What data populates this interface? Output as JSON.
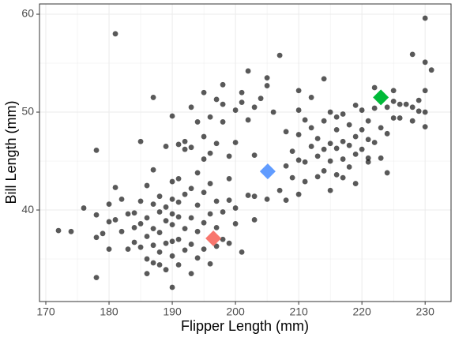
{
  "chart_data": {
    "type": "scatter",
    "xlabel": "Flipper Length (mm)",
    "ylabel": "Bill Length (mm)",
    "xlim": [
      169,
      234.1
    ],
    "ylim": [
      30.65,
      61.05
    ],
    "xticks": [
      170,
      180,
      190,
      200,
      210,
      220,
      230
    ],
    "yticks": [
      40,
      50,
      60
    ],
    "x_minor_ticks": [
      175,
      185,
      195,
      205,
      215,
      225
    ],
    "y_minor_ticks": [
      35,
      45,
      55
    ],
    "grid": true,
    "series": [
      {
        "color": "#000000",
        "opacity": 0.65,
        "marker": "circle",
        "x": [
          178,
          178,
          179,
          180,
          180,
          181,
          181,
          182,
          182,
          183,
          184,
          184,
          184,
          185,
          185,
          185,
          186,
          186,
          186,
          186,
          187,
          187,
          187,
          187,
          187,
          188,
          188,
          188,
          188,
          189,
          189,
          189,
          189,
          190,
          190,
          190,
          190,
          190,
          190,
          190,
          191,
          191,
          191,
          191,
          192,
          192,
          192,
          193,
          193,
          193,
          193,
          194,
          194,
          194,
          195,
          195,
          195,
          196,
          196,
          196,
          197,
          197,
          197,
          198,
          198,
          199,
          199,
          200,
          200,
          201,
          202,
          203,
          205,
          208,
          210,
          195,
          192,
          189,
          185,
          180,
          183,
          186,
          188,
          191,
          194,
          172,
          174,
          176,
          178,
          187,
          190,
          191,
          192,
          193,
          193,
          194,
          195,
          195,
          196,
          196,
          197,
          197,
          198,
          198,
          198,
          199,
          200,
          200,
          201,
          201,
          202,
          202,
          203,
          204,
          205,
          205,
          206,
          207,
          210,
          210,
          212,
          178,
          181,
          203,
          199,
          203,
          207,
          208,
          209,
          209,
          210,
          210,
          211,
          211,
          212,
          212,
          213,
          213,
          213,
          214,
          214,
          214,
          215,
          215,
          215,
          215,
          216,
          216,
          216,
          216,
          217,
          217,
          217,
          218,
          218,
          218,
          219,
          219,
          219,
          220,
          220,
          220,
          221,
          221,
          221,
          222,
          222,
          222,
          223,
          223,
          224,
          224,
          225,
          225,
          226,
          226,
          227,
          228,
          228,
          228,
          229,
          229,
          230,
          230,
          230,
          230,
          230,
          231,
          208,
          211,
          214,
          217,
          221,
          225,
          224,
          219
        ],
        "values": [
          37.2,
          39.5,
          37.6,
          38.8,
          36.0,
          39.0,
          42.3,
          37.8,
          41.1,
          39.6,
          36.7,
          38.2,
          39.7,
          36.2,
          38.6,
          40.9,
          35.0,
          37.3,
          39.2,
          42.5,
          34.6,
          36.4,
          38.1,
          40.6,
          44.1,
          35.7,
          37.7,
          39.8,
          41.4,
          33.9,
          36.6,
          38.9,
          40.3,
          32.1,
          35.3,
          36.8,
          38.5,
          39.6,
          41.1,
          42.9,
          34.4,
          37.0,
          39.3,
          40.8,
          35.9,
          38.1,
          41.6,
          33.5,
          36.5,
          39.2,
          42.2,
          35.1,
          37.8,
          40.5,
          36.0,
          38.7,
          41.8,
          34.5,
          39.6,
          42.7,
          36.3,
          38.2,
          40.9,
          37.0,
          39.8,
          36.6,
          41.0,
          38.6,
          40.2,
          35.7,
          41.5,
          39.0,
          41.1,
          41.0,
          41.6,
          45.2,
          46.2,
          46.5,
          47.0,
          40.6,
          36.0,
          33.5,
          34.4,
          43.2,
          43.8,
          37.9,
          37.8,
          40.2,
          33.1,
          51.5,
          49.6,
          46.7,
          47.0,
          50.5,
          46.4,
          49.0,
          47.5,
          52.0,
          49.5,
          45.8,
          51.3,
          46.8,
          50.8,
          52.8,
          49.0,
          45.5,
          50.2,
          46.9,
          51.0,
          52.0,
          54.2,
          49.2,
          50.5,
          51.4,
          52.7,
          53.5,
          50.0,
          55.8,
          52.2,
          50.2,
          51.5,
          46.1,
          58.0,
          45.6,
          43.2,
          41.4,
          42.0,
          44.5,
          43.3,
          46.0,
          45.1,
          47.7,
          42.9,
          44.9,
          46.5,
          48.4,
          43.4,
          45.5,
          47.3,
          44.0,
          46.2,
          49.1,
          42.0,
          45.0,
          46.8,
          50.0,
          43.6,
          46.3,
          48.2,
          49.5,
          45.2,
          47.0,
          49.8,
          44.4,
          46.6,
          48.7,
          45.7,
          47.5,
          50.7,
          46.2,
          48.2,
          50.2,
          45.3,
          47.2,
          49.1,
          46.9,
          50.4,
          52.5,
          45.3,
          48.4,
          47.8,
          50.5,
          49.4,
          51.1,
          50.8,
          49.4,
          50.8,
          50.5,
          55.9,
          49.1,
          50.1,
          51.2,
          48.5,
          50.0,
          52.2,
          55.1,
          59.6,
          54.3,
          48.0,
          49.2,
          53.4,
          43.3,
          44.9,
          52.2,
          43.8,
          42.7
        ]
      },
      {
        "colors": [
          "#F8766D",
          "#619CFF",
          "#00BA38"
        ],
        "marker": "diamond",
        "x": [
          196.5,
          205.1,
          223.0
        ],
        "values": [
          37.1,
          43.95,
          51.5
        ]
      }
    ]
  }
}
